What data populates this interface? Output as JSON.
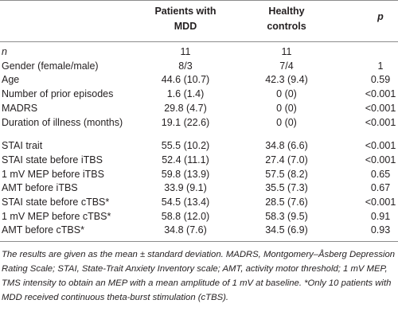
{
  "table": {
    "header": [
      "Patients with MDD",
      "Healthy controls",
      "p"
    ],
    "sections": [
      {
        "rows": [
          [
            "n",
            "11",
            "11"
          ],
          [
            "Gender (female/male)",
            "8/3",
            "7/4",
            "1"
          ],
          [
            "Age",
            "44.6 (10.7)",
            "42.3 (9.4)",
            "0.59"
          ],
          [
            "Number of prior episodes",
            "1.6 (1.4)",
            "0 (0)",
            "<0.001"
          ],
          [
            "MADRS",
            "29.8 (4.7)",
            "0 (0)",
            "<0.001"
          ],
          [
            "Duration of illness (months)",
            "19.1 (22.6)",
            "0 (0)",
            "<0.001"
          ]
        ]
      },
      {
        "rows": [
          [
            "STAI trait",
            "55.5 (10.2)",
            "34.8 (6.6)",
            "<0.001"
          ],
          [
            "STAI state before iTBS",
            "52.4 (11.1)",
            "27.4 (7.0)",
            "<0.001"
          ],
          [
            "1 mV MEP before iTBS",
            "59.8 (13.9)",
            "57.5 (8.2)",
            "0.65"
          ],
          [
            "AMT before iTBS",
            "33.9 (9.1)",
            "35.5 (7.3)",
            "0.67"
          ],
          [
            "STAI state before cTBS*",
            "54.5 (13.4)",
            "28.5 (7.6)",
            "<0.001"
          ],
          [
            "1 mV MEP before cTBS*",
            "58.8 (12.0)",
            "58.3 (9.5)",
            "0.91"
          ],
          [
            "AMT before cTBS*",
            "34.8 (7.6)",
            "34.5 (6.9)",
            "0.93"
          ]
        ]
      }
    ],
    "footnote": "The results are given as the mean ± standard deviation. MADRS, Montgomery–Åsberg Depression Rating Scale; STAI, State-Trait Anxiety Inventory scale; AMT, activity motor threshold; 1 mV MEP, TMS intensity to obtain an MEP with a mean amplitude of 1 mV at baseline. *Only 10 patients with MDD received continuous theta-burst stimulation (cTBS)."
  }
}
